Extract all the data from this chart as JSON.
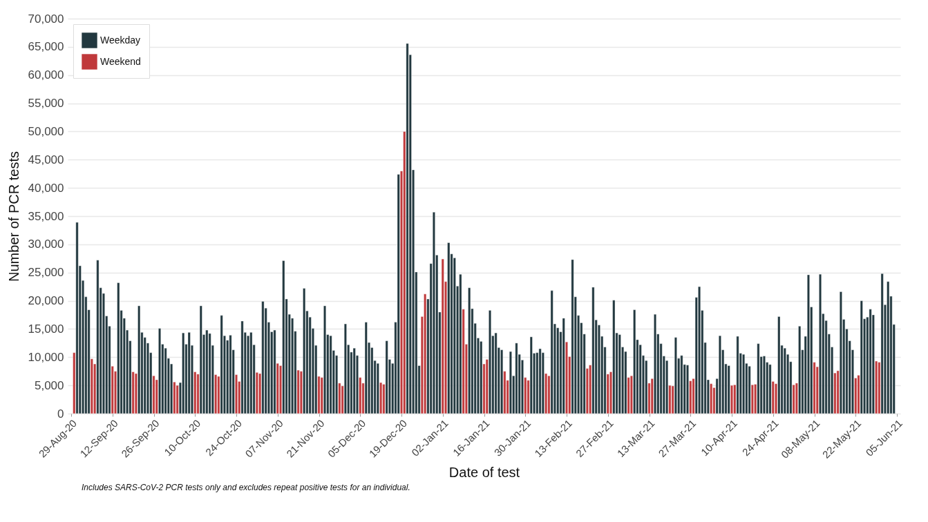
{
  "chart_data": {
    "type": "bar",
    "xlabel": "Date of test",
    "ylabel": "Number of PCR tests",
    "xlim": [
      "2020-08-29",
      "2021-06-05"
    ],
    "xticks": [
      {
        "value": "2020-08-29",
        "label": "29-Aug-20"
      },
      {
        "value": "2020-09-12",
        "label": "12-Sep-20"
      },
      {
        "value": "2020-09-26",
        "label": "26-Sep-20"
      },
      {
        "value": "2020-10-10",
        "label": "10-Oct-20"
      },
      {
        "value": "2020-10-24",
        "label": "24-Oct-20"
      },
      {
        "value": "2020-11-07",
        "label": "07-Nov-20"
      },
      {
        "value": "2020-11-21",
        "label": "21-Nov-20"
      },
      {
        "value": "2020-12-05",
        "label": "05-Dec-20"
      },
      {
        "value": "2020-12-19",
        "label": "19-Dec-20"
      },
      {
        "value": "2021-01-02",
        "label": "02-Jan-21"
      },
      {
        "value": "2021-01-16",
        "label": "16-Jan-21"
      },
      {
        "value": "2021-01-30",
        "label": "30-Jan-21"
      },
      {
        "value": "2021-02-13",
        "label": "13-Feb-21"
      },
      {
        "value": "2021-02-27",
        "label": "27-Feb-21"
      },
      {
        "value": "2021-03-13",
        "label": "13-Mar-21"
      },
      {
        "value": "2021-03-27",
        "label": "27-Mar-21"
      },
      {
        "value": "2021-04-10",
        "label": "10-Apr-21"
      },
      {
        "value": "2021-04-24",
        "label": "24-Apr-21"
      },
      {
        "value": "2021-05-08",
        "label": "08-May-21"
      },
      {
        "value": "2021-05-22",
        "label": "22-May-21"
      },
      {
        "value": "2021-06-05",
        "label": "05-Jun-21"
      }
    ],
    "ylim": [
      0,
      70000
    ],
    "yticks": [
      0,
      {
        "value": 5000,
        "label": "5,000"
      },
      {
        "value": 10000,
        "label": "10,000"
      },
      {
        "value": 15000,
        "label": "15,000"
      },
      {
        "value": 20000,
        "label": "20,000"
      },
      {
        "value": 25000,
        "label": "25,000"
      },
      {
        "value": 30000,
        "label": "30,000"
      },
      {
        "value": 35000,
        "label": "35,000"
      },
      {
        "value": 40000,
        "label": "40,000"
      },
      {
        "value": 45000,
        "label": "45,000"
      },
      {
        "value": 50000,
        "label": "50,000"
      },
      {
        "value": 55000,
        "label": "55,000"
      },
      {
        "value": 60000,
        "label": "60,000"
      },
      {
        "value": 65000,
        "label": "65,000"
      },
      {
        "value": 70000,
        "label": "70,000"
      }
    ],
    "grid": "y",
    "legend": "top left",
    "annotations": [
      "Includes SARS-CoV-2 PCR tests only and excludes repeat positive tests for an individual."
    ],
    "series": [
      {
        "name": "Weekday",
        "color": "#22383f",
        "x": [
          "2020-08-31",
          "2020-09-01",
          "2020-09-02",
          "2020-09-03",
          "2020-09-04",
          "2020-09-07",
          "2020-09-08",
          "2020-09-09",
          "2020-09-10",
          "2020-09-11",
          "2020-09-14",
          "2020-09-15",
          "2020-09-16",
          "2020-09-17",
          "2020-09-18",
          "2020-09-21",
          "2020-09-22",
          "2020-09-23",
          "2020-09-24",
          "2020-09-25",
          "2020-09-28",
          "2020-09-29",
          "2020-09-30",
          "2020-10-01",
          "2020-10-02",
          "2020-10-05",
          "2020-10-06",
          "2020-10-07",
          "2020-10-08",
          "2020-10-09",
          "2020-10-12",
          "2020-10-13",
          "2020-10-14",
          "2020-10-15",
          "2020-10-16",
          "2020-10-19",
          "2020-10-20",
          "2020-10-21",
          "2020-10-22",
          "2020-10-23",
          "2020-10-26",
          "2020-10-27",
          "2020-10-28",
          "2020-10-29",
          "2020-10-30",
          "2020-11-02",
          "2020-11-03",
          "2020-11-04",
          "2020-11-05",
          "2020-11-06",
          "2020-11-09",
          "2020-11-10",
          "2020-11-11",
          "2020-11-12",
          "2020-11-13",
          "2020-11-16",
          "2020-11-17",
          "2020-11-18",
          "2020-11-19",
          "2020-11-20",
          "2020-11-23",
          "2020-11-24",
          "2020-11-25",
          "2020-11-26",
          "2020-11-27",
          "2020-11-30",
          "2020-12-01",
          "2020-12-02",
          "2020-12-03",
          "2020-12-04",
          "2020-12-07",
          "2020-12-08",
          "2020-12-09",
          "2020-12-10",
          "2020-12-11",
          "2020-12-14",
          "2020-12-15",
          "2020-12-16",
          "2020-12-17",
          "2020-12-18",
          "2020-12-21",
          "2020-12-22",
          "2020-12-23",
          "2020-12-24",
          "2020-12-25",
          "2020-12-28",
          "2020-12-29",
          "2020-12-30",
          "2020-12-31",
          "2021-01-01",
          "2021-01-04",
          "2021-01-05",
          "2021-01-06",
          "2021-01-07",
          "2021-01-08",
          "2021-01-11",
          "2021-01-12",
          "2021-01-13",
          "2021-01-14",
          "2021-01-15",
          "2021-01-18",
          "2021-01-19",
          "2021-01-20",
          "2021-01-21",
          "2021-01-22",
          "2021-01-25",
          "2021-01-26",
          "2021-01-27",
          "2021-01-28",
          "2021-01-29",
          "2021-02-01",
          "2021-02-02",
          "2021-02-03",
          "2021-02-04",
          "2021-02-05",
          "2021-02-08",
          "2021-02-09",
          "2021-02-10",
          "2021-02-11",
          "2021-02-12",
          "2021-02-15",
          "2021-02-16",
          "2021-02-17",
          "2021-02-18",
          "2021-02-19",
          "2021-02-22",
          "2021-02-23",
          "2021-02-24",
          "2021-02-25",
          "2021-02-26",
          "2021-03-01",
          "2021-03-02",
          "2021-03-03",
          "2021-03-04",
          "2021-03-05",
          "2021-03-08",
          "2021-03-09",
          "2021-03-10",
          "2021-03-11",
          "2021-03-12",
          "2021-03-15",
          "2021-03-16",
          "2021-03-17",
          "2021-03-18",
          "2021-03-19",
          "2021-03-22",
          "2021-03-23",
          "2021-03-24",
          "2021-03-25",
          "2021-03-26",
          "2021-03-29",
          "2021-03-30",
          "2021-03-31",
          "2021-04-01",
          "2021-04-02",
          "2021-04-05",
          "2021-04-06",
          "2021-04-07",
          "2021-04-08",
          "2021-04-09",
          "2021-04-12",
          "2021-04-13",
          "2021-04-14",
          "2021-04-15",
          "2021-04-16",
          "2021-04-19",
          "2021-04-20",
          "2021-04-21",
          "2021-04-22",
          "2021-04-23",
          "2021-04-26",
          "2021-04-27",
          "2021-04-28",
          "2021-04-29",
          "2021-04-30",
          "2021-05-03",
          "2021-05-04",
          "2021-05-05",
          "2021-05-06",
          "2021-05-07",
          "2021-05-10",
          "2021-05-11",
          "2021-05-12",
          "2021-05-13",
          "2021-05-14",
          "2021-05-17",
          "2021-05-18",
          "2021-05-19",
          "2021-05-20",
          "2021-05-21",
          "2021-05-24",
          "2021-05-25",
          "2021-05-26",
          "2021-05-27",
          "2021-05-28",
          "2021-05-31",
          "2021-06-01",
          "2021-06-02",
          "2021-06-03",
          "2021-06-04"
        ],
        "values": [
          33900,
          26200,
          23600,
          20700,
          18400,
          27200,
          22300,
          21300,
          17300,
          15500,
          23200,
          18300,
          16900,
          14800,
          12900,
          19100,
          14400,
          13500,
          12500,
          10800,
          15100,
          12300,
          11600,
          9800,
          8800,
          5500,
          14300,
          12300,
          14400,
          12100,
          19100,
          14000,
          14800,
          14200,
          12100,
          17400,
          13800,
          13000,
          13900,
          11300,
          16400,
          14400,
          13800,
          14400,
          12200,
          19900,
          18700,
          16200,
          14500,
          14800,
          27100,
          20300,
          17600,
          16900,
          14600,
          22200,
          18200,
          17100,
          15100,
          12100,
          19100,
          14000,
          13800,
          11200,
          10300,
          15900,
          12200,
          10900,
          11600,
          10300,
          16200,
          12600,
          11700,
          9400,
          8900,
          12900,
          9600,
          8900,
          16200,
          42400,
          65600,
          63600,
          43200,
          25100,
          8500,
          20300,
          26600,
          35700,
          28100,
          18000,
          30300,
          28300,
          27600,
          22600,
          24700,
          22300,
          18600,
          16000,
          13400,
          12800,
          18300,
          13800,
          14300,
          11700,
          11300,
          11000,
          6700,
          12500,
          10500,
          9500,
          13600,
          10700,
          10800,
          11500,
          10800,
          21800,
          15900,
          15200,
          14500,
          16900,
          27300,
          20700,
          17400,
          16100,
          14100,
          22400,
          16600,
          15700,
          13700,
          11800,
          20100,
          14300,
          14000,
          11800,
          11000,
          18400,
          13100,
          12200,
          10300,
          9400,
          17600,
          14100,
          12400,
          10200,
          9400,
          13500,
          9800,
          10300,
          8700,
          8600,
          20600,
          22500,
          18300,
          12600,
          6000,
          6200,
          13800,
          11300,
          8800,
          8500,
          13700,
          10700,
          10500,
          8900,
          8400,
          12400,
          10100,
          10200,
          9100,
          8700,
          17200,
          12100,
          11600,
          10500,
          9200,
          15500,
          11300,
          13700,
          24600,
          18900,
          24700,
          17700,
          16500,
          14100,
          11800,
          21600,
          16700,
          15000,
          12900,
          11300,
          20000,
          16800,
          17100,
          18500,
          17500,
          24800,
          19300,
          23400,
          20800,
          15800
        ]
      },
      {
        "name": "Weekend",
        "color": "#c0393b",
        "x": [
          "2020-08-30",
          "2020-09-05",
          "2020-09-06",
          "2020-09-12",
          "2020-09-13",
          "2020-09-19",
          "2020-09-20",
          "2020-09-26",
          "2020-09-27",
          "2020-10-03",
          "2020-10-04",
          "2020-10-10",
          "2020-10-11",
          "2020-10-17",
          "2020-10-18",
          "2020-10-24",
          "2020-10-25",
          "2020-10-31",
          "2020-11-01",
          "2020-11-07",
          "2020-11-08",
          "2020-11-14",
          "2020-11-15",
          "2020-11-21",
          "2020-11-22",
          "2020-11-28",
          "2020-11-29",
          "2020-12-05",
          "2020-12-06",
          "2020-12-12",
          "2020-12-13",
          "2020-12-19",
          "2020-12-20",
          "2020-12-26",
          "2020-12-27",
          "2021-01-02",
          "2021-01-03",
          "2021-01-09",
          "2021-01-10",
          "2021-01-16",
          "2021-01-17",
          "2021-01-23",
          "2021-01-24",
          "2021-01-30",
          "2021-01-31",
          "2021-02-06",
          "2021-02-07",
          "2021-02-13",
          "2021-02-14",
          "2021-02-20",
          "2021-02-21",
          "2021-02-27",
          "2021-02-28",
          "2021-03-06",
          "2021-03-07",
          "2021-03-13",
          "2021-03-14",
          "2021-03-20",
          "2021-03-21",
          "2021-03-27",
          "2021-03-28",
          "2021-04-03",
          "2021-04-04",
          "2021-04-10",
          "2021-04-11",
          "2021-04-17",
          "2021-04-18",
          "2021-04-24",
          "2021-04-25",
          "2021-05-01",
          "2021-05-02",
          "2021-05-08",
          "2021-05-09",
          "2021-05-15",
          "2021-05-16",
          "2021-05-22",
          "2021-05-23",
          "2021-05-29",
          "2021-05-30"
        ],
        "values": [
          10800,
          9700,
          8800,
          8400,
          7500,
          7400,
          7100,
          6700,
          6000,
          5600,
          5000,
          7400,
          7000,
          6900,
          6600,
          6900,
          5700,
          7300,
          7100,
          8900,
          8500,
          7700,
          7500,
          6600,
          6400,
          5400,
          4900,
          6400,
          5400,
          5500,
          5200,
          43000,
          50000,
          17200,
          21200,
          27400,
          23400,
          18500,
          12300,
          8800,
          9600,
          7500,
          5900,
          6400,
          5900,
          7100,
          6700,
          12700,
          10100,
          8000,
          8600,
          7000,
          7400,
          6400,
          6700,
          5400,
          6200,
          5000,
          4900,
          5800,
          6200,
          5300,
          4600,
          5000,
          5100,
          5100,
          5200,
          5700,
          5300,
          5100,
          5400,
          9100,
          8300,
          7200,
          7600,
          6300,
          6800,
          9300,
          9100
        ]
      }
    ]
  }
}
